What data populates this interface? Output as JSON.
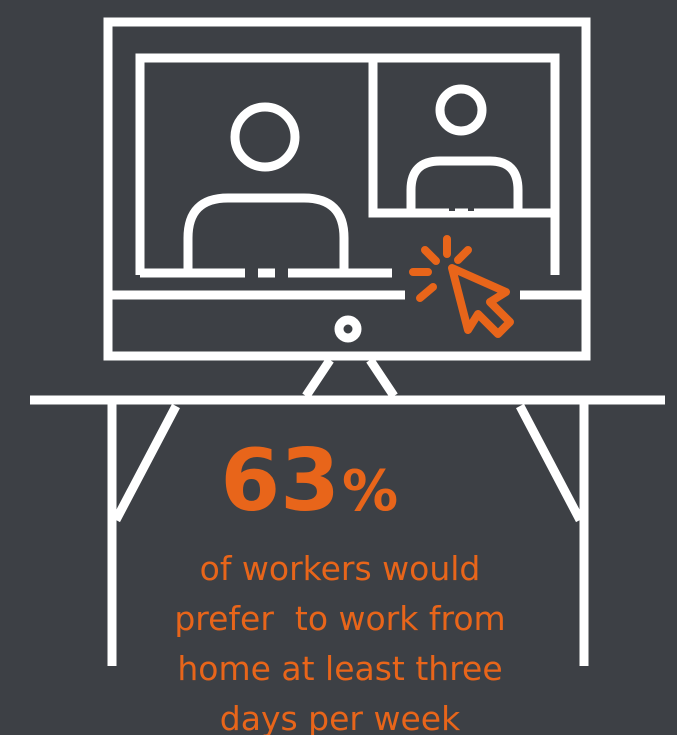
{
  "stat": {
    "number": "63",
    "unit": "%"
  },
  "description": [
    "of workers would",
    "prefer  to work from",
    "home at least three",
    "days per week"
  ]
}
